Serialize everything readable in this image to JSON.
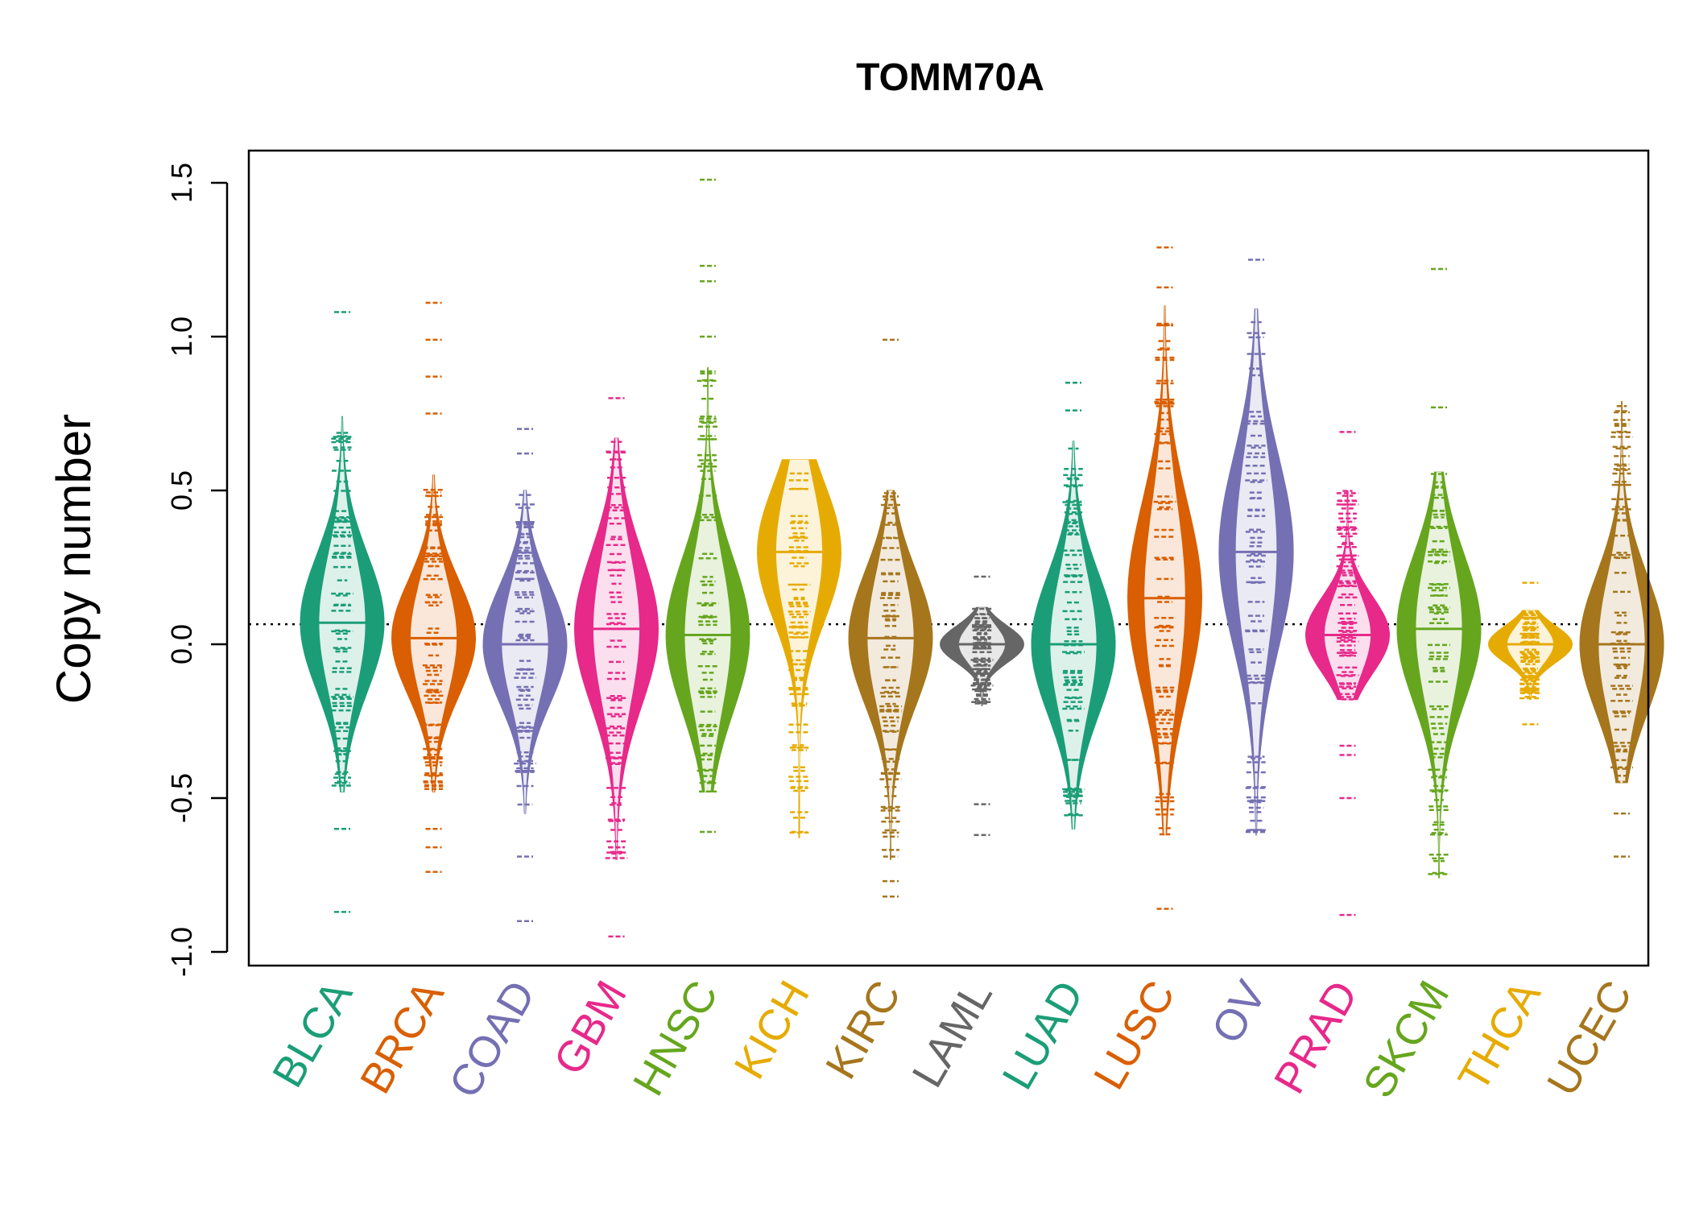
{
  "chart_data": {
    "type": "beanplot",
    "title": "TOMM70A",
    "xlabel": "",
    "ylabel": "Copy number",
    "ylim": [
      -1.0,
      1.5
    ],
    "yticks": [
      "-1.0",
      "-0.5",
      "0.0",
      "0.5",
      "1.0",
      "1.5"
    ],
    "reference_line": 0.065,
    "grid": false,
    "categories": [
      "BLCA",
      "BRCA",
      "COAD",
      "GBM",
      "HNSC",
      "KICH",
      "KIRC",
      "LAML",
      "LUAD",
      "LUSC",
      "OV",
      "PRAD",
      "SKCM",
      "THCA",
      "UCEC"
    ],
    "colors": [
      "#1b9e77",
      "#d95f02",
      "#7570b3",
      "#e7298a",
      "#66a61e",
      "#e6ab02",
      "#a6761d",
      "#666666",
      "#1b9e77",
      "#d95f02",
      "#7570b3",
      "#e7298a",
      "#66a61e",
      "#e6ab02",
      "#a6761d"
    ],
    "series": [
      {
        "category": "BLCA",
        "min": -0.48,
        "max": 0.74,
        "median": 0.07,
        "outliers": [
          -0.6,
          -0.87,
          1.08
        ]
      },
      {
        "category": "BRCA",
        "min": -0.48,
        "max": 0.55,
        "median": 0.02,
        "outliers": [
          -0.6,
          -0.66,
          -0.74,
          0.75,
          0.87,
          0.99,
          1.11
        ]
      },
      {
        "category": "COAD",
        "min": -0.55,
        "max": 0.5,
        "median": 0.0,
        "outliers": [
          -0.69,
          -0.9,
          0.62,
          0.7
        ]
      },
      {
        "category": "GBM",
        "min": -0.7,
        "max": 0.67,
        "median": 0.05,
        "outliers": [
          -0.95,
          0.8
        ]
      },
      {
        "category": "HNSC",
        "min": -0.48,
        "max": 0.9,
        "median": 0.03,
        "outliers": [
          -0.61,
          1.0,
          1.18,
          1.23,
          1.51
        ]
      },
      {
        "category": "KICH",
        "min": -0.63,
        "max": 0.6,
        "median": 0.3,
        "outliers": []
      },
      {
        "category": "KIRC",
        "min": -0.7,
        "max": 0.5,
        "median": 0.02,
        "outliers": [
          -0.77,
          -0.82,
          0.99
        ]
      },
      {
        "category": "LAML",
        "min": -0.2,
        "max": 0.12,
        "median": 0.0,
        "outliers": [
          -0.52,
          -0.62,
          0.22
        ]
      },
      {
        "category": "LUAD",
        "min": -0.6,
        "max": 0.66,
        "median": 0.0,
        "outliers": [
          0.76,
          0.85
        ]
      },
      {
        "category": "LUSC",
        "min": -0.62,
        "max": 1.1,
        "median": 0.15,
        "outliers": [
          -0.86,
          1.16,
          1.29
        ]
      },
      {
        "category": "OV",
        "min": -0.62,
        "max": 1.09,
        "median": 0.3,
        "outliers": [
          1.25
        ]
      },
      {
        "category": "PRAD",
        "min": -0.18,
        "max": 0.5,
        "median": 0.03,
        "outliers": [
          -0.33,
          -0.36,
          -0.5,
          -0.88,
          0.69
        ]
      },
      {
        "category": "SKCM",
        "min": -0.76,
        "max": 0.56,
        "median": 0.05,
        "outliers": [
          0.77,
          1.22
        ]
      },
      {
        "category": "THCA",
        "min": -0.18,
        "max": 0.11,
        "median": 0.0,
        "outliers": [
          -0.26,
          0.2
        ]
      },
      {
        "category": "UCEC",
        "min": -0.45,
        "max": 0.79,
        "median": 0.0,
        "outliers": [
          -0.55,
          -0.69
        ]
      }
    ]
  }
}
